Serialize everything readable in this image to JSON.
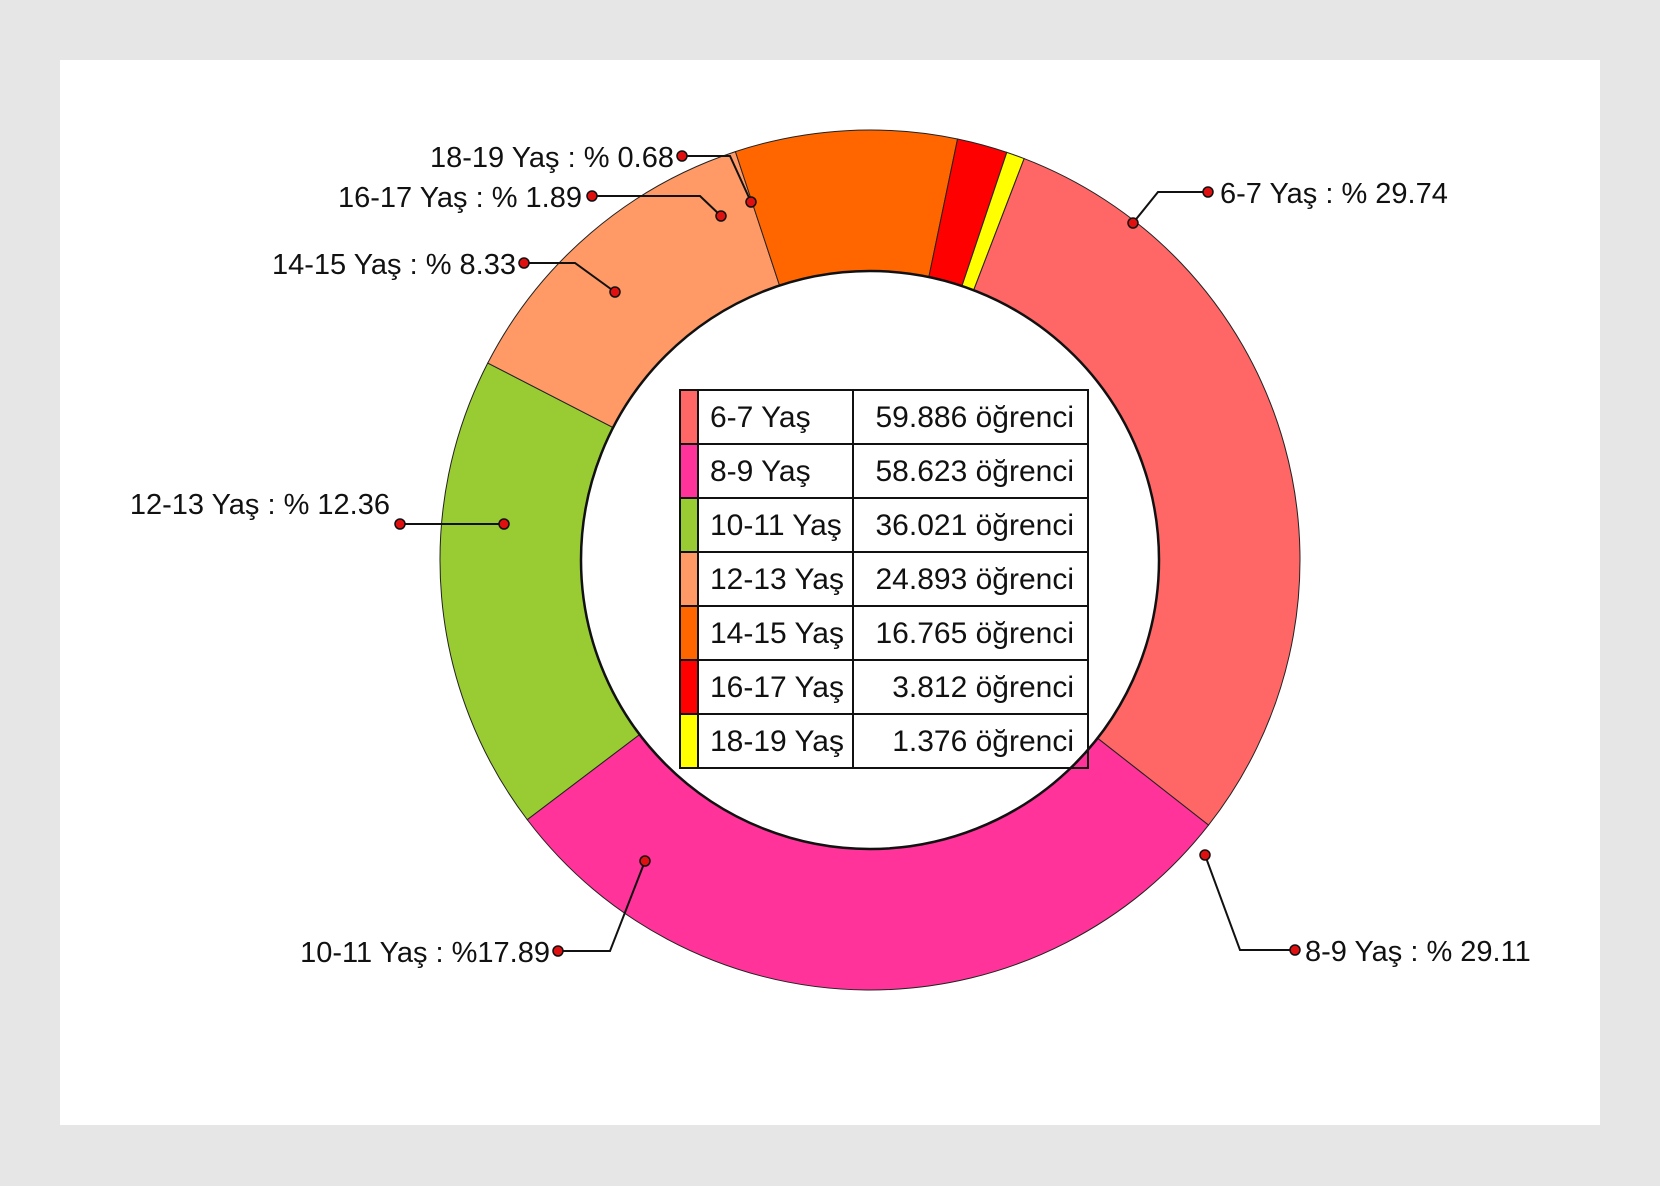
{
  "chart_data": {
    "type": "pie",
    "donut": true,
    "slices": [
      {
        "category": "6-7 Yaş",
        "percent": 29.74,
        "count": "59.886 öğrenci",
        "label": "6-7 Yaş : % 29.74",
        "color": "#ff6666"
      },
      {
        "category": "8-9 Yaş",
        "percent": 29.11,
        "count": "58.623 öğrenci",
        "label": "8-9 Yaş : % 29.11",
        "color": "#ff3399"
      },
      {
        "category": "10-11 Yaş",
        "percent": 17.89,
        "count": "36.021 öğrenci",
        "label": "10-11 Yaş : %17.89",
        "color": "#99cc33"
      },
      {
        "category": "12-13 Yaş",
        "percent": 12.36,
        "count": "24.893 öğrenci",
        "label": "12-13 Yaş : % 12.36",
        "color": "#ff9966"
      },
      {
        "category": "14-15 Yaş",
        "percent": 8.33,
        "count": "16.765 öğrenci",
        "label": "14-15 Yaş : % 8.33",
        "color": "#ff6600"
      },
      {
        "category": "16-17 Yaş",
        "percent": 1.89,
        "count": "3.812 öğrenci",
        "label": "16-17 Yaş : % 1.89",
        "color": "#ff0000"
      },
      {
        "category": "18-19 Yaş",
        "percent": 0.68,
        "count": "1.376 öğrenci",
        "label": "18-19 Yaş : % 0.68",
        "color": "#ffff00"
      }
    ],
    "legend_position": "center"
  }
}
